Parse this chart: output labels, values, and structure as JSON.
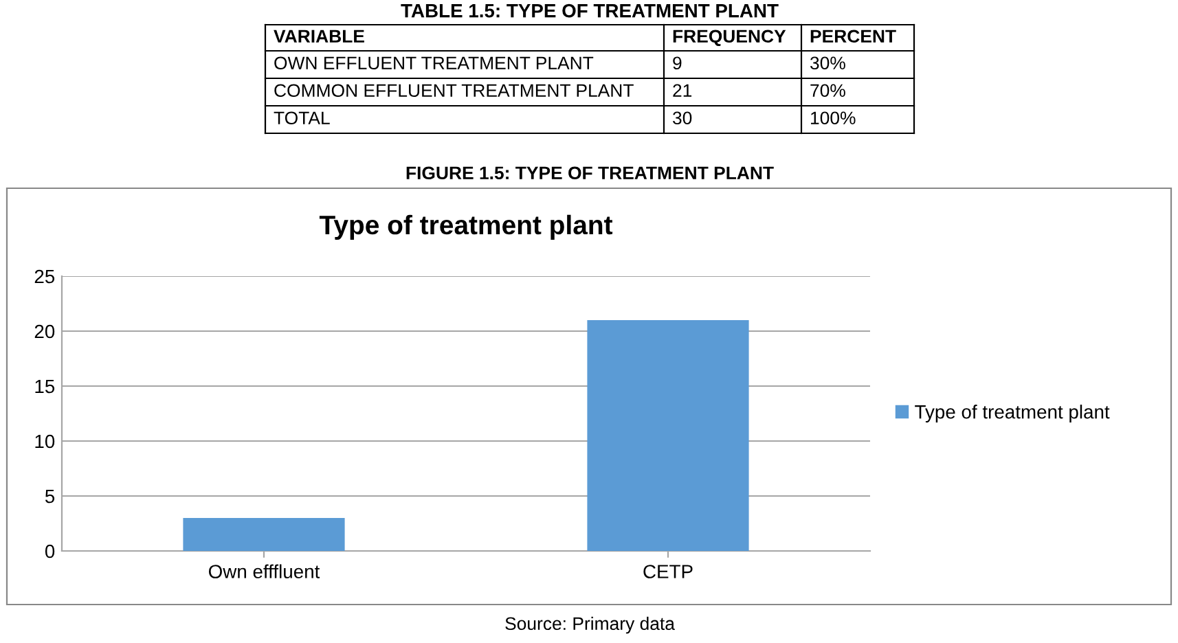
{
  "chart_data": {
    "type": "bar",
    "title": "Type of treatment plant",
    "categories": [
      "Own efffluent",
      "CETP"
    ],
    "series": [
      {
        "name": "Type of treatment plant",
        "color": "#5b9bd5",
        "values": [
          3,
          21
        ]
      }
    ],
    "ylim": [
      0,
      25
    ],
    "yticks": [
      0,
      5,
      10,
      15,
      20,
      25
    ],
    "grid": "y",
    "legend": "right",
    "annotations": [
      "TABLE 1.5: TYPE OF TREATMENT PLANT",
      "VARIABLE",
      "FREQUENCY",
      "PERCENT",
      "OWN EFFLUENT TREATMENT PLANT",
      "9",
      "30%",
      "COMMON EFFLUENT TREATMENT PLANT",
      "21",
      "70%",
      "TOTAL",
      "30",
      "100%",
      "FIGURE 1.5: TYPE OF TREATMENT PLANT",
      "Source: Primary data"
    ]
  }
}
